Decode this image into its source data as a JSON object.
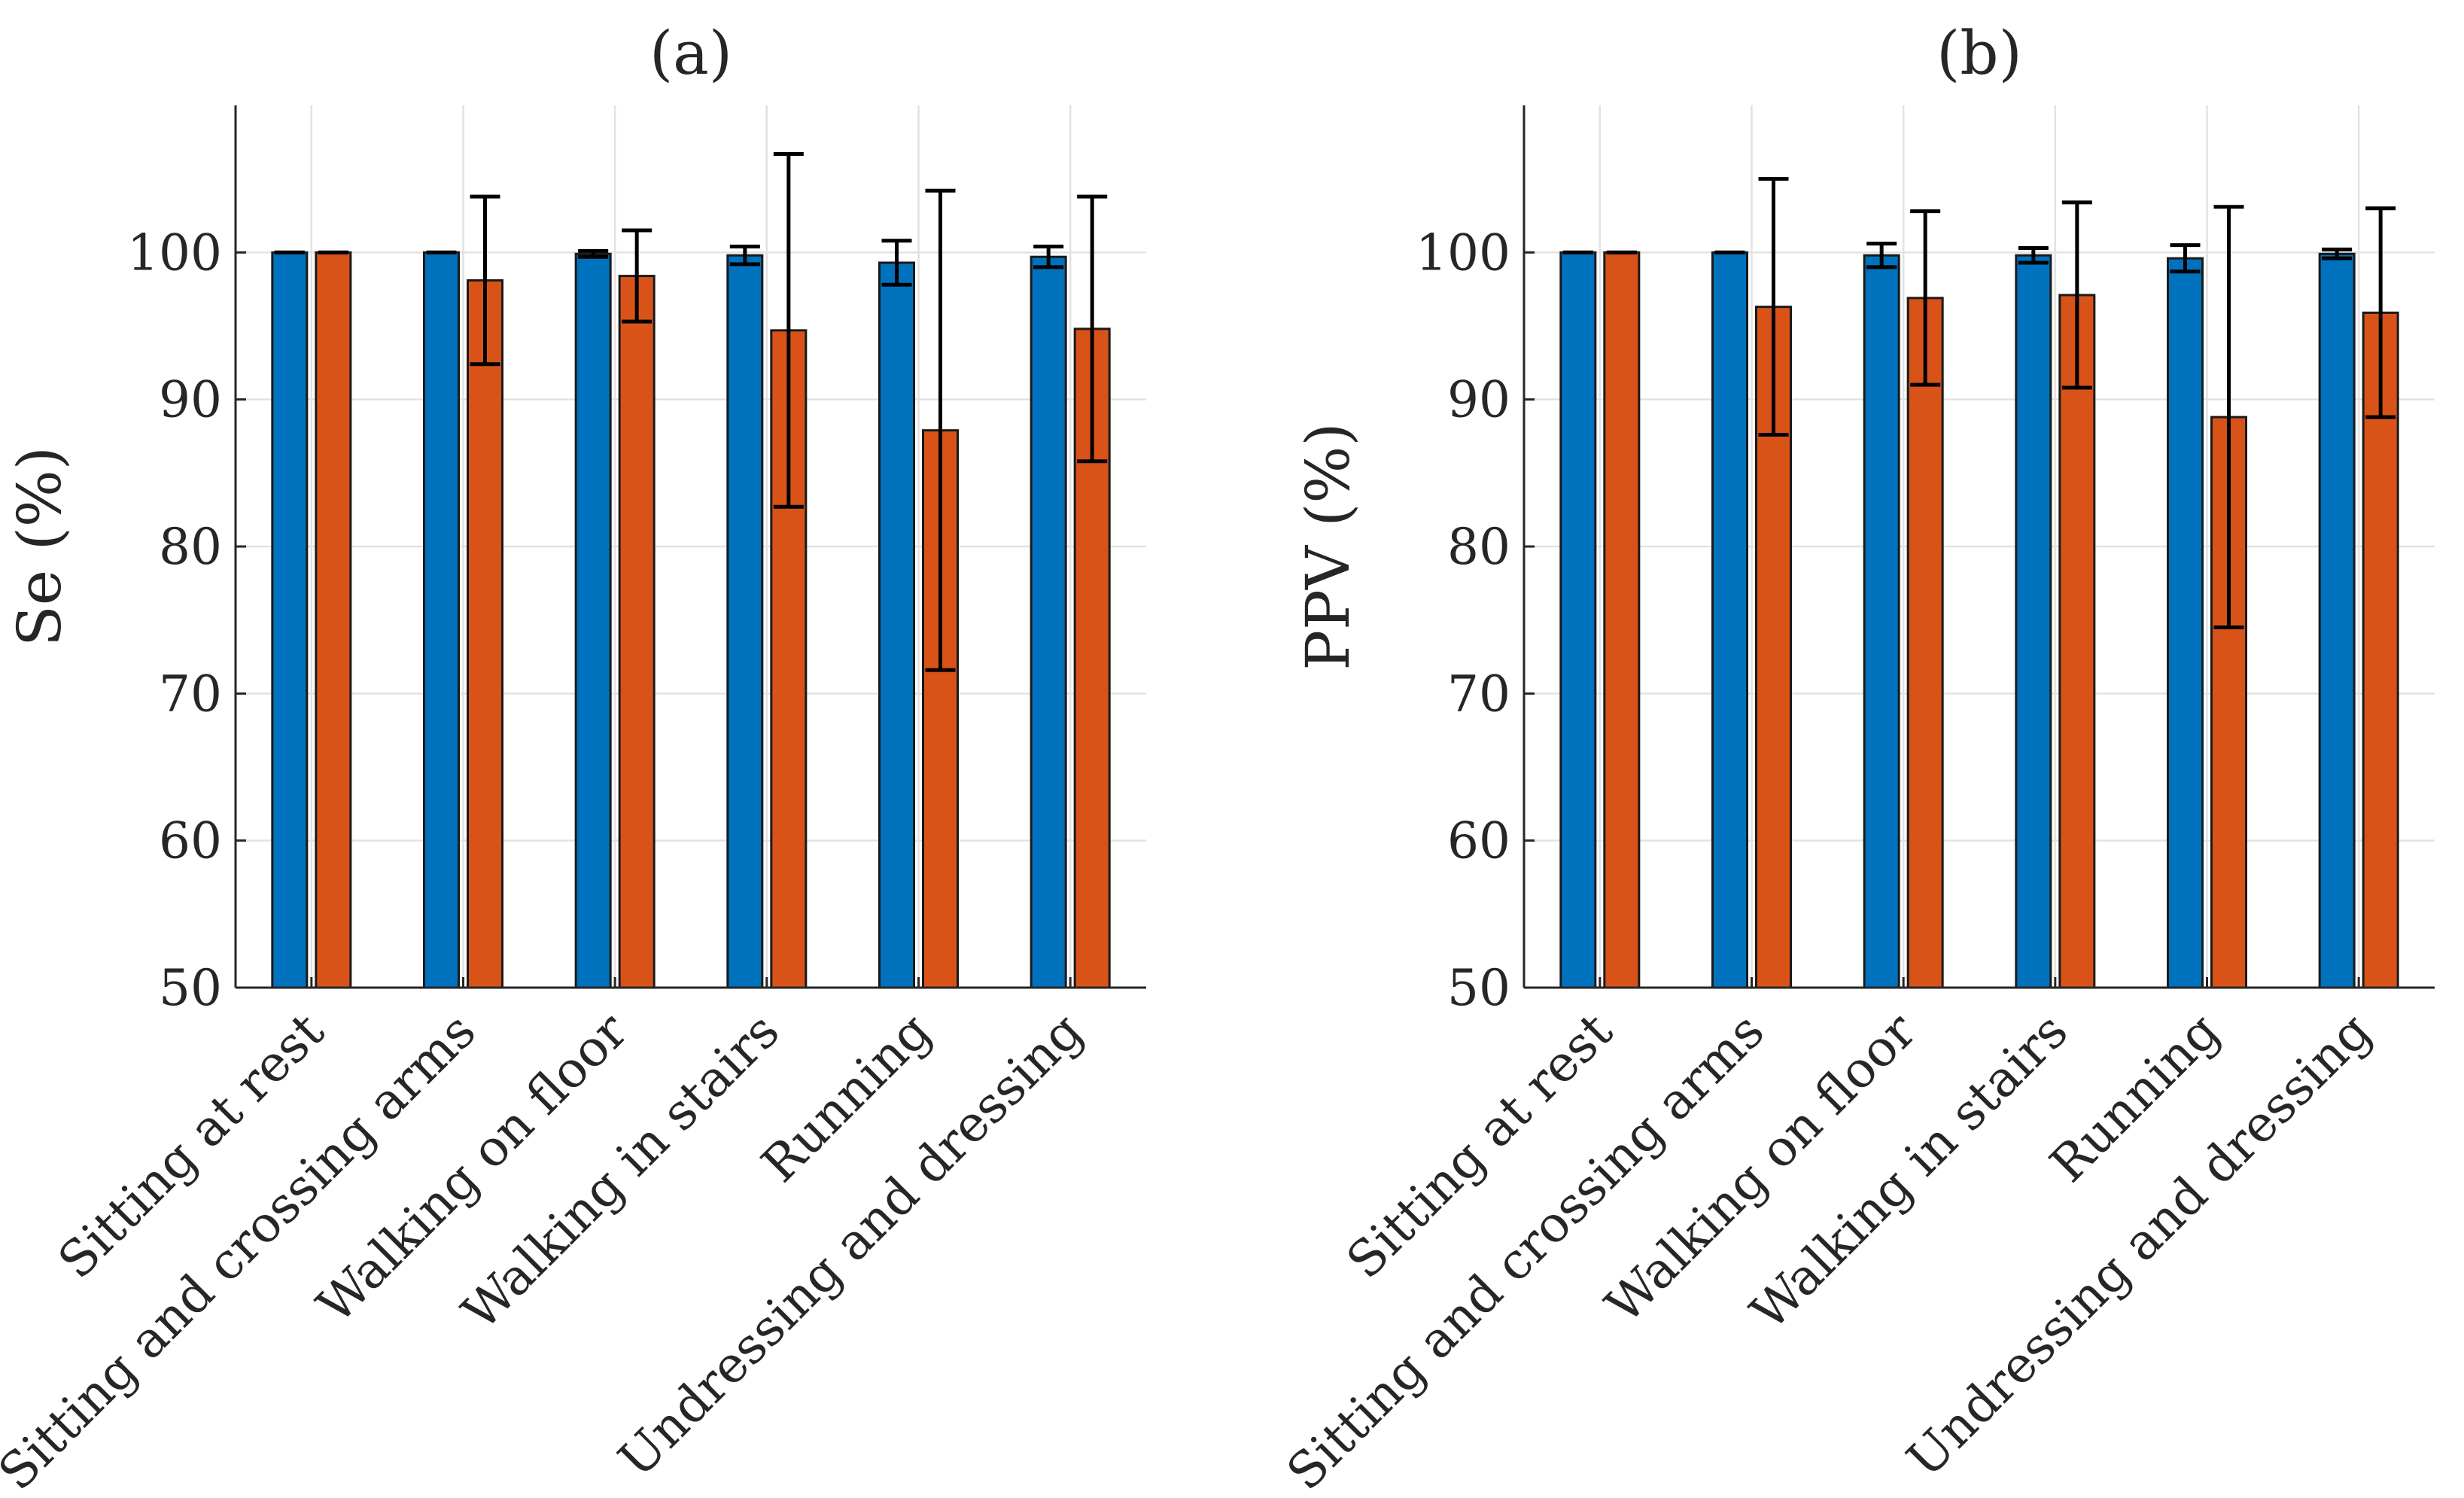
{
  "chart_data": [
    {
      "type": "bar",
      "title": "(a)",
      "xlabel": "",
      "ylabel": "Se (%)",
      "ylim": [
        50,
        110
      ],
      "yticks": [
        50,
        60,
        70,
        80,
        90,
        100
      ],
      "grid": true,
      "categories": [
        "Sitting at rest",
        "Sitting and crossing arms",
        "Walking on floor",
        "Walking in stairs",
        "Running",
        "Undressing and dressing"
      ],
      "series": [
        {
          "color": "#0072BD",
          "values": [
            100,
            100,
            99.9,
            99.8,
            99.3,
            99.7
          ],
          "error": [
            0,
            0,
            0.2,
            0.6,
            1.5,
            0.7
          ]
        },
        {
          "color": "#D95319",
          "values": [
            100,
            98.1,
            98.4,
            94.7,
            87.9,
            94.8
          ],
          "error": [
            0,
            5.7,
            3.1,
            12.0,
            16.3,
            9.0
          ]
        }
      ]
    },
    {
      "type": "bar",
      "title": "(b)",
      "xlabel": "",
      "ylabel": "PPV (%)",
      "ylim": [
        50,
        110
      ],
      "yticks": [
        50,
        60,
        70,
        80,
        90,
        100
      ],
      "grid": true,
      "categories": [
        "Sitting at rest",
        "Sitting and crossing arms",
        "Walking on floor",
        "Walking in stairs",
        "Running",
        "Undressing and dressing"
      ],
      "series": [
        {
          "color": "#0072BD",
          "values": [
            100,
            100,
            99.8,
            99.8,
            99.6,
            99.9
          ],
          "error": [
            0,
            0,
            0.8,
            0.5,
            0.9,
            0.3
          ]
        },
        {
          "color": "#D95319",
          "values": [
            100,
            96.3,
            96.9,
            97.1,
            88.8,
            95.9
          ],
          "error": [
            0,
            8.7,
            5.9,
            6.3,
            14.3,
            7.1
          ]
        }
      ]
    }
  ]
}
